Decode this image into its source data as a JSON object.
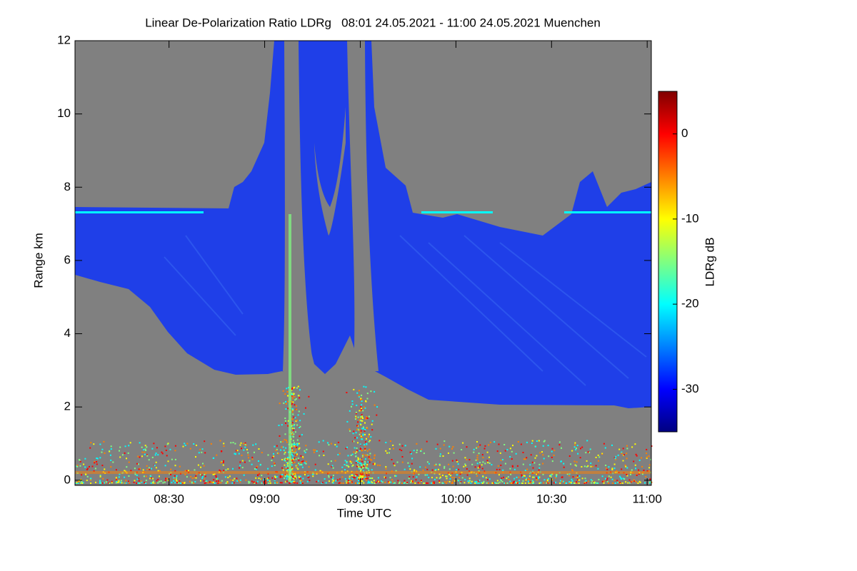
{
  "chart_data": {
    "type": "heatmap",
    "title": "Linear De-Polarization Ratio LDRg   08:01 24.05.2021 - 11:00 24.05.2021 Muenchen",
    "x_label": "Time UTC",
    "y_label": "Range km",
    "colorbar_label": "LDRg dB",
    "xlim": [
      480.5,
      661.3
    ],
    "xticks": [
      {
        "value": 510,
        "label": "08:30"
      },
      {
        "value": 540,
        "label": "09:00"
      },
      {
        "value": 570,
        "label": "09:30"
      },
      {
        "value": 600,
        "label": "10:00"
      },
      {
        "value": 630,
        "label": "10:30"
      },
      {
        "value": 660,
        "label": "11:00"
      }
    ],
    "ylim": [
      -0.14,
      12
    ],
    "yticks": [
      0,
      2,
      4,
      6,
      8,
      10,
      12
    ],
    "clim": [
      -35,
      5
    ],
    "cticks": [
      0,
      -10,
      -20,
      -30
    ],
    "colormap": [
      "#000080",
      "#0000ff",
      "#0080ff",
      "#00ffff",
      "#80ff80",
      "#ffff00",
      "#ff8000",
      "#ff0000",
      "#800000"
    ]
  }
}
